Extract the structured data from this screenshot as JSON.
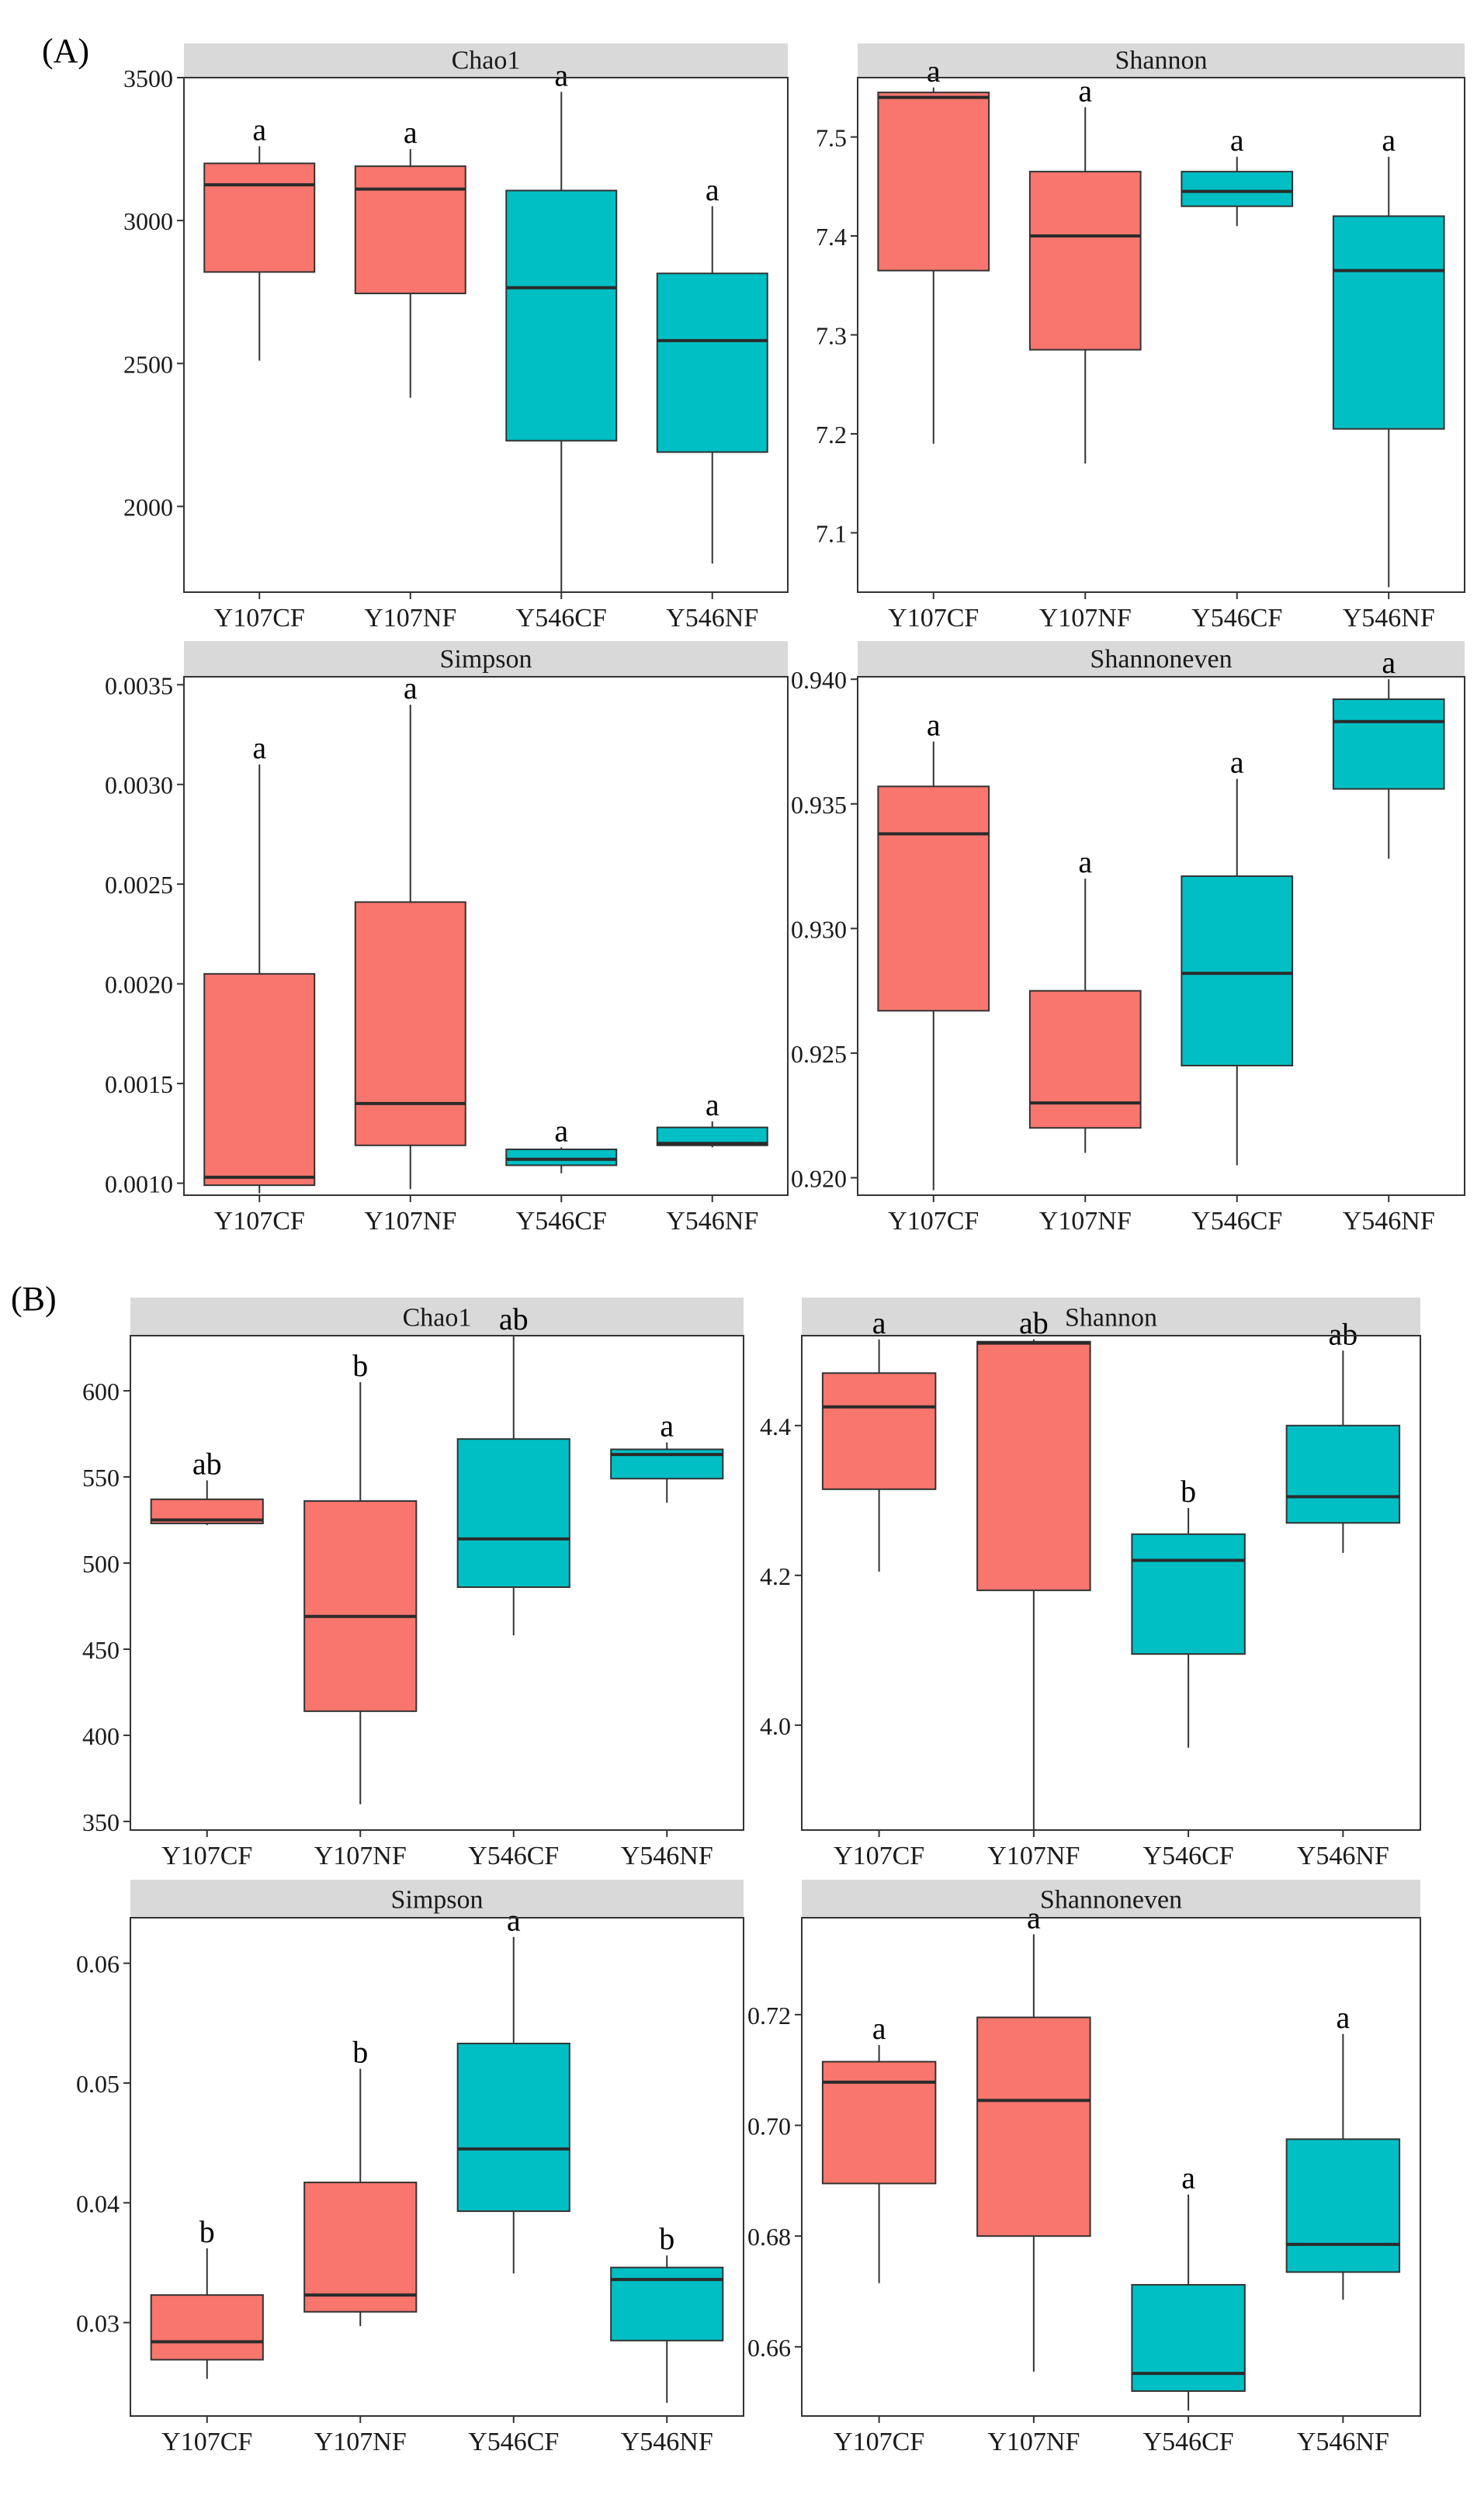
{
  "figure": {
    "section_labels": [
      "(A)",
      "(B)"
    ]
  },
  "colors": {
    "CF_group": "#F8766D",
    "NF_group": "#00BFC4",
    "strip": "#D9D9D9",
    "panel_border": "#333333",
    "median": "#2b2b2b"
  },
  "chart_data": [
    {
      "type": "boxplot",
      "section": "(A)",
      "title": "Chao1",
      "categories": [
        "Y107CF",
        "Y107NF",
        "Y546CF",
        "Y546NF"
      ],
      "ylim": [
        1700,
        3500
      ],
      "yticks": [
        2000,
        2500,
        3000,
        3500
      ],
      "ytick_labels": [
        "2000",
        "2500",
        "3000",
        "3500"
      ],
      "boxes": [
        {
          "min": 2510,
          "q1": 2820,
          "median": 3125,
          "q3": 3200,
          "max": 3260
        },
        {
          "min": 2380,
          "q1": 2745,
          "median": 3110,
          "q3": 3190,
          "max": 3250
        },
        {
          "min": 1700,
          "q1": 2230,
          "median": 2765,
          "q3": 3105,
          "max": 3450
        },
        {
          "min": 1800,
          "q1": 2190,
          "median": 2580,
          "q3": 2815,
          "max": 3050
        }
      ],
      "letters": [
        "a",
        "a",
        "a",
        "a"
      ]
    },
    {
      "type": "boxplot",
      "section": "(A)",
      "title": "Shannon",
      "categories": [
        "Y107CF",
        "Y107NF",
        "Y546CF",
        "Y546NF"
      ],
      "ylim": [
        7.04,
        7.56
      ],
      "yticks": [
        7.1,
        7.2,
        7.3,
        7.4,
        7.5
      ],
      "ytick_labels": [
        "7.1",
        "7.2",
        "7.3",
        "7.4",
        "7.5"
      ],
      "boxes": [
        {
          "min": 7.19,
          "q1": 7.365,
          "median": 7.54,
          "q3": 7.545,
          "max": 7.55
        },
        {
          "min": 7.17,
          "q1": 7.285,
          "median": 7.4,
          "q3": 7.465,
          "max": 7.53
        },
        {
          "min": 7.41,
          "q1": 7.43,
          "median": 7.445,
          "q3": 7.465,
          "max": 7.48
        },
        {
          "min": 7.045,
          "q1": 7.205,
          "median": 7.365,
          "q3": 7.42,
          "max": 7.48
        }
      ],
      "letters": [
        "a",
        "a",
        "a",
        "a"
      ]
    },
    {
      "type": "boxplot",
      "section": "(A)",
      "title": "Simpson",
      "categories": [
        "Y107CF",
        "Y107NF",
        "Y546CF",
        "Y546NF"
      ],
      "ylim": [
        0.00094,
        0.00354
      ],
      "yticks": [
        0.001,
        0.0015,
        0.002,
        0.0025,
        0.003,
        0.0035
      ],
      "ytick_labels": [
        "0.0010",
        "0.0015",
        "0.0020",
        "0.0025",
        "0.0030",
        "0.0035"
      ],
      "boxes": [
        {
          "min": 0.00095,
          "q1": 0.00099,
          "median": 0.00103,
          "q3": 0.00205,
          "max": 0.0031
        },
        {
          "min": 0.00097,
          "q1": 0.00119,
          "median": 0.0014,
          "q3": 0.00241,
          "max": 0.0034
        },
        {
          "min": 0.00105,
          "q1": 0.00109,
          "median": 0.00112,
          "q3": 0.00117,
          "max": 0.00118
        },
        {
          "min": 0.00118,
          "q1": 0.00119,
          "median": 0.0012,
          "q3": 0.00128,
          "max": 0.00131
        }
      ],
      "letters": [
        "a",
        "a",
        "a",
        "a"
      ]
    },
    {
      "type": "boxplot",
      "section": "(A)",
      "title": "Shannoneven",
      "categories": [
        "Y107CF",
        "Y107NF",
        "Y546CF",
        "Y546NF"
      ],
      "ylim": [
        0.9193,
        0.9401
      ],
      "yticks": [
        0.92,
        0.925,
        0.93,
        0.935,
        0.94
      ],
      "ytick_labels": [
        "0.920",
        "0.925",
        "0.930",
        "0.935",
        "0.940"
      ],
      "boxes": [
        {
          "min": 0.9195,
          "q1": 0.9267,
          "median": 0.9338,
          "q3": 0.9357,
          "max": 0.9375
        },
        {
          "min": 0.921,
          "q1": 0.922,
          "median": 0.923,
          "q3": 0.9275,
          "max": 0.932
        },
        {
          "min": 0.9205,
          "q1": 0.9245,
          "median": 0.9282,
          "q3": 0.9321,
          "max": 0.936
        },
        {
          "min": 0.9328,
          "q1": 0.9356,
          "median": 0.9383,
          "q3": 0.9392,
          "max": 0.94
        }
      ],
      "letters": [
        "a",
        "a",
        "a",
        "a"
      ]
    },
    {
      "type": "boxplot",
      "section": "(B)",
      "title": "Chao1",
      "categories": [
        "Y107CF",
        "Y107NF",
        "Y546CF",
        "Y546NF"
      ],
      "ylim": [
        345,
        632
      ],
      "yticks": [
        350,
        400,
        450,
        500,
        550,
        600
      ],
      "ytick_labels": [
        "350",
        "400",
        "450",
        "500",
        "550",
        "600"
      ],
      "boxes": [
        {
          "min": 522,
          "q1": 523,
          "median": 525,
          "q3": 537,
          "max": 548
        },
        {
          "min": 360,
          "q1": 414,
          "median": 469,
          "q3": 536,
          "max": 605
        },
        {
          "min": 458,
          "q1": 486,
          "median": 514,
          "q3": 572,
          "max": 632
        },
        {
          "min": 535,
          "q1": 549,
          "median": 563,
          "q3": 566,
          "max": 570
        }
      ],
      "letters": [
        "ab",
        "b",
        "ab",
        "a"
      ]
    },
    {
      "type": "boxplot",
      "section": "(B)",
      "title": "Shannon",
      "categories": [
        "Y107CF",
        "Y107NF",
        "Y546CF",
        "Y546NF"
      ],
      "ylim": [
        3.86,
        4.52
      ],
      "yticks": [
        4.0,
        4.2,
        4.4
      ],
      "ytick_labels": [
        "4.0",
        "4.2",
        "4.4"
      ],
      "boxes": [
        {
          "min": 4.205,
          "q1": 4.315,
          "median": 4.425,
          "q3": 4.47,
          "max": 4.515
        },
        {
          "min": 3.86,
          "q1": 4.18,
          "median": 4.51,
          "q3": 4.512,
          "max": 4.515
        },
        {
          "min": 3.97,
          "q1": 4.095,
          "median": 4.22,
          "q3": 4.255,
          "max": 4.29
        },
        {
          "min": 4.23,
          "q1": 4.27,
          "median": 4.305,
          "q3": 4.4,
          "max": 4.5
        }
      ],
      "letters": [
        "a",
        "ab",
        "b",
        "ab"
      ]
    },
    {
      "type": "boxplot",
      "section": "(B)",
      "title": "Simpson",
      "categories": [
        "Y107CF",
        "Y107NF",
        "Y546CF",
        "Y546NF"
      ],
      "ylim": [
        0.0222,
        0.0638
      ],
      "yticks": [
        0.03,
        0.04,
        0.05,
        0.06
      ],
      "ytick_labels": [
        "0.03",
        "0.04",
        "0.05",
        "0.06"
      ],
      "boxes": [
        {
          "min": 0.0253,
          "q1": 0.0269,
          "median": 0.0284,
          "q3": 0.0323,
          "max": 0.0362
        },
        {
          "min": 0.0297,
          "q1": 0.0309,
          "median": 0.0323,
          "q3": 0.0417,
          "max": 0.0512
        },
        {
          "min": 0.0341,
          "q1": 0.0393,
          "median": 0.0445,
          "q3": 0.0533,
          "max": 0.0622
        },
        {
          "min": 0.0233,
          "q1": 0.0285,
          "median": 0.0336,
          "q3": 0.0346,
          "max": 0.0356
        }
      ],
      "letters": [
        "b",
        "b",
        "a",
        "b"
      ]
    },
    {
      "type": "boxplot",
      "section": "(B)",
      "title": "Shannoneven",
      "categories": [
        "Y107CF",
        "Y107NF",
        "Y546CF",
        "Y546NF"
      ],
      "ylim": [
        0.6475,
        0.7375
      ],
      "yticks": [
        0.66,
        0.68,
        0.7,
        0.72
      ],
      "ytick_labels": [
        "0.66",
        "0.68",
        "0.70",
        "0.72"
      ],
      "boxes": [
        {
          "min": 0.6715,
          "q1": 0.6895,
          "median": 0.7078,
          "q3": 0.7115,
          "max": 0.7145
        },
        {
          "min": 0.6555,
          "q1": 0.68,
          "median": 0.7045,
          "q3": 0.7195,
          "max": 0.7345
        },
        {
          "min": 0.6485,
          "q1": 0.652,
          "median": 0.6552,
          "q3": 0.6712,
          "max": 0.6875
        },
        {
          "min": 0.6685,
          "q1": 0.6735,
          "median": 0.6785,
          "q3": 0.6975,
          "max": 0.7165
        }
      ],
      "letters": [
        "a",
        "a",
        "a",
        "a"
      ]
    }
  ]
}
